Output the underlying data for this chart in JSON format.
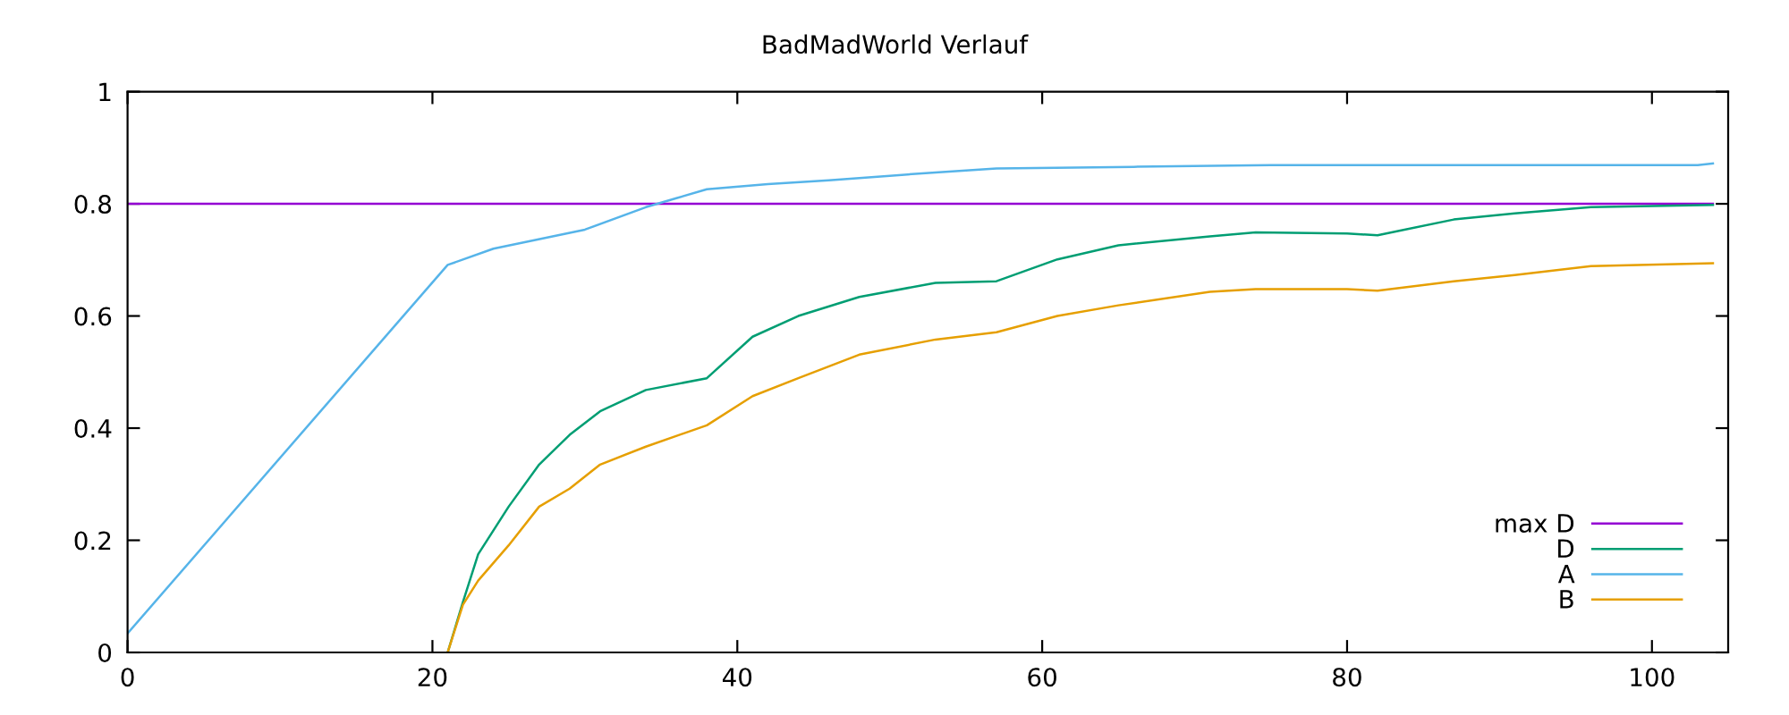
{
  "chart_data": {
    "type": "line",
    "title": "BadMadWorld Verlauf",
    "xlim": [
      0,
      105
    ],
    "xticks": [
      0,
      20,
      40,
      60,
      80,
      100
    ],
    "ylim": [
      0,
      1
    ],
    "yticks": [
      0,
      0.2,
      0.4,
      0.6,
      0.8,
      1
    ],
    "legend": "bottom right",
    "line_style": "solid",
    "series": [
      {
        "name": "max D",
        "color": "#9400d3",
        "x": [
          0,
          104
        ],
        "values": [
          0.8,
          0.8
        ]
      },
      {
        "name": "D",
        "color": "#009e73",
        "x": [
          21,
          22,
          23,
          25,
          27,
          29,
          31,
          34,
          38,
          41,
          44,
          48,
          53,
          57,
          61,
          65,
          71,
          74,
          80,
          82,
          87,
          91,
          96,
          104
        ],
        "values": [
          0,
          0.09,
          0.175,
          0.26,
          0.335,
          0.388,
          0.43,
          0.468,
          0.489,
          0.563,
          0.6,
          0.634,
          0.659,
          0.662,
          0.701,
          0.726,
          0.742,
          0.749,
          0.747,
          0.744,
          0.772,
          0.783,
          0.794,
          0.798
        ]
      },
      {
        "name": "A",
        "color": "#56b4e9",
        "x": [
          0,
          21,
          24,
          30,
          34,
          36,
          38,
          42,
          46,
          50,
          53,
          57,
          66,
          75,
          103,
          104
        ],
        "values": [
          0.034,
          0.691,
          0.72,
          0.754,
          0.794,
          0.81,
          0.826,
          0.835,
          0.842,
          0.85,
          0.856,
          0.863,
          0.866,
          0.869,
          0.869,
          0.872
        ]
      },
      {
        "name": "B",
        "color": "#e69f00",
        "x": [
          21,
          22,
          23,
          25,
          27,
          29,
          31,
          34,
          38,
          41,
          44,
          48,
          53,
          57,
          61,
          65,
          71,
          74,
          80,
          82,
          87,
          91,
          96,
          104
        ],
        "values": [
          0,
          0.085,
          0.128,
          0.191,
          0.26,
          0.292,
          0.335,
          0.367,
          0.405,
          0.457,
          0.489,
          0.531,
          0.558,
          0.571,
          0.6,
          0.619,
          0.643,
          0.648,
          0.648,
          0.645,
          0.662,
          0.673,
          0.689,
          0.694
        ]
      }
    ]
  }
}
